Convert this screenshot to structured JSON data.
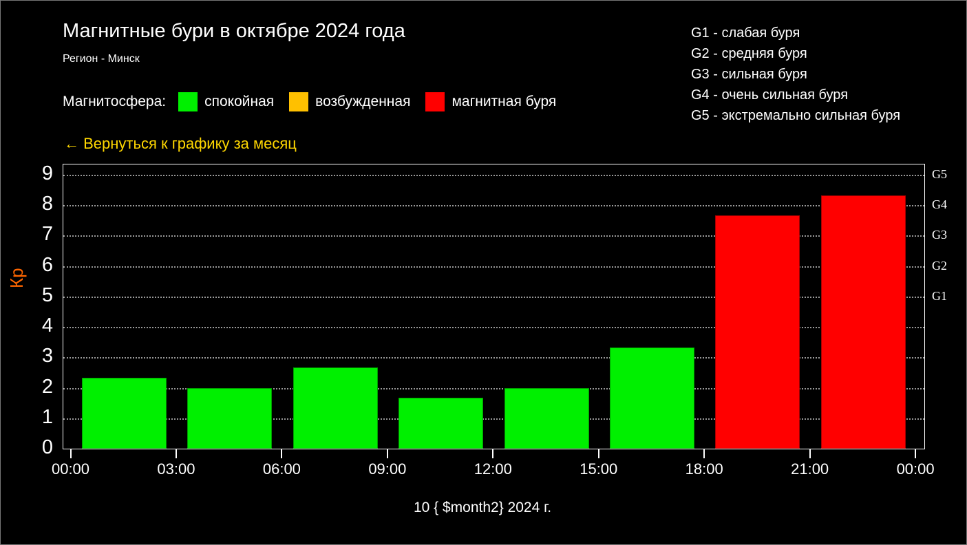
{
  "header": {
    "title": "Магнитные бури в октябре 2024 года",
    "subtitle": "Регион - Минск"
  },
  "legend": {
    "label": "Магнитосфера:",
    "items": [
      {
        "label": "спокойная",
        "color": "#00f000"
      },
      {
        "label": "возбужденная",
        "color": "#ffc000"
      },
      {
        "label": "магнитная буря",
        "color": "#ff0000"
      }
    ]
  },
  "g_scale": {
    "items": [
      "G1 - слабая буря",
      "G2 - средняя буря",
      "G3 - сильная буря",
      "G4 - очень сильная буря",
      "G5 - экстремально сильная буря"
    ]
  },
  "back_link": {
    "text": "← Вернуться к графику за месяц",
    "color": "#ffd700"
  },
  "chart_data": {
    "type": "bar",
    "title": "Магнитные бури в октябре 2024 года",
    "ylabel": "Кр",
    "ylabel_color": "#ff6600",
    "date_caption": "10 { $month2} 2024 г.",
    "ylim": [
      0,
      9.34
    ],
    "yticks": [
      0,
      1,
      2,
      3,
      4,
      5,
      6,
      7,
      8,
      9
    ],
    "grid": "horizontal dotted, black background, white frame",
    "xticks_hours": [
      0,
      3,
      6,
      9,
      12,
      15,
      18,
      21,
      24
    ],
    "xtick_labels": [
      "00:00",
      "03:00",
      "06:00",
      "09:00",
      "12:00",
      "15:00",
      "18:00",
      "21:00",
      "00:00"
    ],
    "bars": [
      {
        "slot": "00:00–03:00",
        "center_hour": 1.5,
        "kp": 2.33,
        "level": "quiet"
      },
      {
        "slot": "03:00–06:00",
        "center_hour": 4.5,
        "kp": 2.0,
        "level": "quiet"
      },
      {
        "slot": "06:00–09:00",
        "center_hour": 7.5,
        "kp": 2.67,
        "level": "quiet"
      },
      {
        "slot": "09:00–12:00",
        "center_hour": 10.5,
        "kp": 1.67,
        "level": "quiet"
      },
      {
        "slot": "12:00–15:00",
        "center_hour": 13.5,
        "kp": 2.0,
        "level": "quiet"
      },
      {
        "slot": "15:00–18:00",
        "center_hour": 16.5,
        "kp": 3.33,
        "level": "quiet"
      },
      {
        "slot": "18:00–21:00",
        "center_hour": 19.5,
        "kp": 7.67,
        "level": "storm"
      },
      {
        "slot": "21:00–00:00",
        "center_hour": 22.5,
        "kp": 8.33,
        "level": "storm"
      }
    ],
    "level_colors": {
      "quiet": "#00f000",
      "excited": "#ffc000",
      "storm": "#ff0000"
    },
    "right_axis_labels": [
      {
        "text": "G5",
        "kp": 9
      },
      {
        "text": "G4",
        "kp": 8
      },
      {
        "text": "G3",
        "kp": 7
      },
      {
        "text": "G2",
        "kp": 6
      },
      {
        "text": "G1",
        "kp": 5
      }
    ],
    "legend_position": "top-left above plot"
  }
}
